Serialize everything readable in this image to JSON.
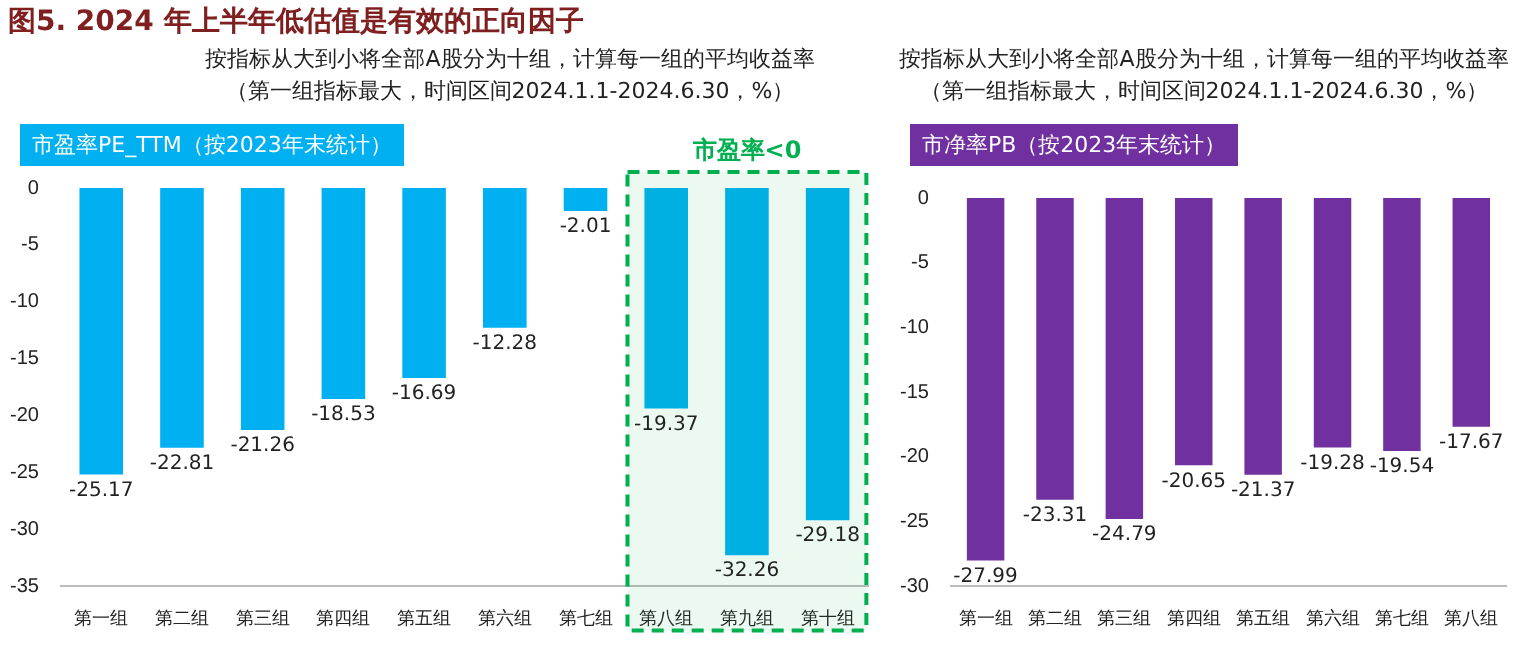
{
  "chart_data": [
    {
      "type": "bar",
      "title": "图5. 2024 年上半年低估值是有效的正向因子",
      "subtitle": "按指标从大到小将全部A股分为十组，计算每一组的平均收益率",
      "annotations": [
        "（第一组指标最大，时间区间2024.1.1-2024.6.30，%）",
        "市盈率PE_TTM（按2023年末统计）"
      ],
      "categories": [
        "第一组",
        "第二组",
        "第三组",
        "第四组",
        "第五组",
        "第六组",
        "第七组",
        "第八组",
        "第九组",
        "第十组"
      ],
      "values": [
        -25.17,
        -22.81,
        -21.26,
        -18.53,
        -16.69,
        -12.28,
        -2.01,
        -19.37,
        -32.26,
        -29.18
      ],
      "color": "#00b0f0",
      "ylim": [
        -35,
        0
      ],
      "yticks": [
        -35,
        -30,
        -25,
        -20,
        -15,
        -10,
        -5,
        0
      ],
      "grid": false,
      "legend": false,
      "data_labels": true,
      "bands": [
        {
          "axis": "x",
          "from": "第八组",
          "to": "第十组",
          "label": "市盈率<0",
          "color": "#00b050"
        }
      ]
    },
    {
      "type": "bar",
      "title": "按指标从大到小将全部A股分为十组，计算每一组的平均收益率",
      "subtitle": "（第一组指标最大，时间区间2024.1.1-2024.6.30，%）",
      "annotations": [
        "市净率PB（按2023年末统计）"
      ],
      "categories": [
        "第一组",
        "第二组",
        "第三组",
        "第四组",
        "第五组",
        "第六组",
        "第七组",
        "第八组"
      ],
      "values": [
        -27.99,
        -23.31,
        -24.79,
        -20.65,
        -21.37,
        -19.28,
        -19.54,
        -17.67
      ],
      "color": "#7030a0",
      "ylim": [
        -30,
        0
      ],
      "yticks": [
        -30,
        -25,
        -20,
        -15,
        -10,
        -5,
        0
      ],
      "grid": false,
      "legend": false,
      "data_labels": true
    }
  ]
}
